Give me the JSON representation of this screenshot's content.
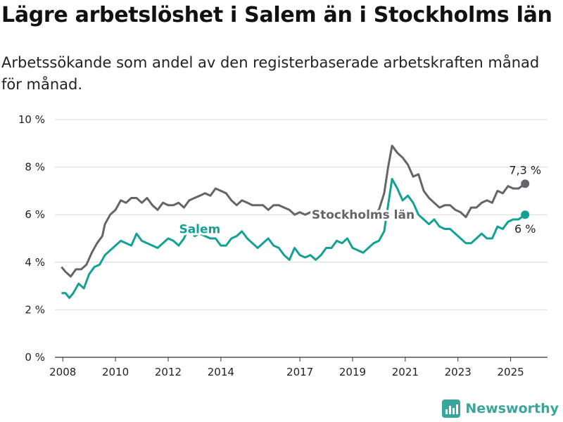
{
  "title": "Lägre arbetslöshet i Salem än i Stockholms län",
  "subtitle": "Arbetssökande som andel av den registerbaserade arbetskraften månad för månad.",
  "brand": "Newsworthy",
  "colors": {
    "stockholm": "#666369",
    "salem": "#13a095",
    "grid": "#d9d9d9",
    "axis": "#333333"
  },
  "chart_data": {
    "type": "line",
    "y_range": [
      0,
      10
    ],
    "y_ticks": [
      0,
      2,
      4,
      6,
      8,
      10
    ],
    "y_tick_labels": [
      "0 %",
      "2 %",
      "4 %",
      "6 %",
      "8 %",
      "10 %"
    ],
    "x_range": [
      2007.7,
      2026.4
    ],
    "x_ticks": [
      2008,
      2010,
      2012,
      2014,
      2017,
      2019,
      2021,
      2023,
      2025
    ],
    "x_tick_labels": [
      "2008",
      "2010",
      "2012",
      "2014",
      "2017",
      "2019",
      "2021",
      "2023",
      "2025"
    ],
    "grid": true,
    "series": [
      {
        "name": "Stockholms län",
        "end_label": "7,3 %",
        "points": [
          [
            2007.95,
            3.8
          ],
          [
            2008.1,
            3.6
          ],
          [
            2008.3,
            3.4
          ],
          [
            2008.5,
            3.7
          ],
          [
            2008.7,
            3.7
          ],
          [
            2008.9,
            3.9
          ],
          [
            2009.1,
            4.4
          ],
          [
            2009.3,
            4.8
          ],
          [
            2009.5,
            5.1
          ],
          [
            2009.6,
            5.6
          ],
          [
            2009.8,
            6.0
          ],
          [
            2010.0,
            6.2
          ],
          [
            2010.2,
            6.6
          ],
          [
            2010.4,
            6.5
          ],
          [
            2010.6,
            6.7
          ],
          [
            2010.8,
            6.7
          ],
          [
            2011.0,
            6.5
          ],
          [
            2011.2,
            6.7
          ],
          [
            2011.4,
            6.4
          ],
          [
            2011.6,
            6.2
          ],
          [
            2011.8,
            6.5
          ],
          [
            2012.0,
            6.4
          ],
          [
            2012.2,
            6.4
          ],
          [
            2012.4,
            6.5
          ],
          [
            2012.6,
            6.3
          ],
          [
            2012.8,
            6.6
          ],
          [
            2013.0,
            6.7
          ],
          [
            2013.2,
            6.8
          ],
          [
            2013.4,
            6.9
          ],
          [
            2013.6,
            6.8
          ],
          [
            2013.8,
            7.1
          ],
          [
            2014.0,
            7.0
          ],
          [
            2014.2,
            6.9
          ],
          [
            2014.4,
            6.6
          ],
          [
            2014.6,
            6.4
          ],
          [
            2014.8,
            6.6
          ],
          [
            2015.0,
            6.5
          ],
          [
            2015.2,
            6.4
          ],
          [
            2015.4,
            6.4
          ],
          [
            2015.6,
            6.4
          ],
          [
            2015.8,
            6.2
          ],
          [
            2016.0,
            6.4
          ],
          [
            2016.2,
            6.4
          ],
          [
            2016.4,
            6.3
          ],
          [
            2016.6,
            6.2
          ],
          [
            2016.8,
            6.0
          ],
          [
            2017.0,
            6.1
          ],
          [
            2017.2,
            6.0
          ],
          [
            2017.4,
            6.1
          ],
          [
            2017.6,
            6.0
          ],
          [
            2017.8,
            6.1
          ],
          [
            2018.0,
            6.0
          ],
          [
            2018.2,
            6.1
          ],
          [
            2018.4,
            6.0
          ],
          [
            2018.6,
            6.0
          ],
          [
            2018.8,
            5.9
          ],
          [
            2019.0,
            5.9
          ],
          [
            2019.2,
            6.0
          ],
          [
            2019.4,
            5.8
          ],
          [
            2019.6,
            5.9
          ],
          [
            2019.8,
            6.0
          ],
          [
            2020.0,
            6.2
          ],
          [
            2020.2,
            6.9
          ],
          [
            2020.35,
            8.0
          ],
          [
            2020.5,
            8.9
          ],
          [
            2020.7,
            8.6
          ],
          [
            2020.9,
            8.4
          ],
          [
            2021.1,
            8.1
          ],
          [
            2021.3,
            7.6
          ],
          [
            2021.5,
            7.7
          ],
          [
            2021.7,
            7.0
          ],
          [
            2021.9,
            6.7
          ],
          [
            2022.1,
            6.5
          ],
          [
            2022.3,
            6.3
          ],
          [
            2022.5,
            6.4
          ],
          [
            2022.7,
            6.4
          ],
          [
            2022.9,
            6.2
          ],
          [
            2023.1,
            6.1
          ],
          [
            2023.3,
            5.9
          ],
          [
            2023.5,
            6.3
          ],
          [
            2023.7,
            6.3
          ],
          [
            2023.9,
            6.5
          ],
          [
            2024.1,
            6.6
          ],
          [
            2024.3,
            6.5
          ],
          [
            2024.5,
            7.0
          ],
          [
            2024.7,
            6.9
          ],
          [
            2024.9,
            7.2
          ],
          [
            2025.1,
            7.1
          ],
          [
            2025.3,
            7.1
          ],
          [
            2025.55,
            7.3
          ]
        ]
      },
      {
        "name": "Salem",
        "end_label": "6 %",
        "points": [
          [
            2007.95,
            2.7
          ],
          [
            2008.1,
            2.7
          ],
          [
            2008.25,
            2.5
          ],
          [
            2008.4,
            2.7
          ],
          [
            2008.6,
            3.1
          ],
          [
            2008.8,
            2.9
          ],
          [
            2009.0,
            3.5
          ],
          [
            2009.2,
            3.8
          ],
          [
            2009.4,
            3.9
          ],
          [
            2009.6,
            4.3
          ],
          [
            2009.8,
            4.5
          ],
          [
            2010.0,
            4.7
          ],
          [
            2010.2,
            4.9
          ],
          [
            2010.4,
            4.8
          ],
          [
            2010.6,
            4.7
          ],
          [
            2010.8,
            5.2
          ],
          [
            2011.0,
            4.9
          ],
          [
            2011.2,
            4.8
          ],
          [
            2011.4,
            4.7
          ],
          [
            2011.6,
            4.6
          ],
          [
            2011.8,
            4.8
          ],
          [
            2012.0,
            5.0
          ],
          [
            2012.2,
            4.9
          ],
          [
            2012.4,
            4.7
          ],
          [
            2012.6,
            5.0
          ],
          [
            2012.8,
            5.5
          ],
          [
            2013.0,
            5.1
          ],
          [
            2013.2,
            5.2
          ],
          [
            2013.4,
            5.1
          ],
          [
            2013.6,
            5.0
          ],
          [
            2013.8,
            5.0
          ],
          [
            2014.0,
            4.7
          ],
          [
            2014.2,
            4.7
          ],
          [
            2014.4,
            5.0
          ],
          [
            2014.6,
            5.1
          ],
          [
            2014.8,
            5.3
          ],
          [
            2015.0,
            5.0
          ],
          [
            2015.2,
            4.8
          ],
          [
            2015.4,
            4.6
          ],
          [
            2015.6,
            4.8
          ],
          [
            2015.8,
            5.0
          ],
          [
            2016.0,
            4.7
          ],
          [
            2016.2,
            4.6
          ],
          [
            2016.4,
            4.3
          ],
          [
            2016.6,
            4.1
          ],
          [
            2016.8,
            4.6
          ],
          [
            2017.0,
            4.3
          ],
          [
            2017.2,
            4.2
          ],
          [
            2017.4,
            4.3
          ],
          [
            2017.6,
            4.1
          ],
          [
            2017.8,
            4.3
          ],
          [
            2018.0,
            4.6
          ],
          [
            2018.2,
            4.6
          ],
          [
            2018.4,
            4.9
          ],
          [
            2018.6,
            4.8
          ],
          [
            2018.8,
            5.0
          ],
          [
            2019.0,
            4.6
          ],
          [
            2019.2,
            4.5
          ],
          [
            2019.4,
            4.4
          ],
          [
            2019.6,
            4.6
          ],
          [
            2019.8,
            4.8
          ],
          [
            2020.0,
            4.9
          ],
          [
            2020.2,
            5.3
          ],
          [
            2020.35,
            6.4
          ],
          [
            2020.5,
            7.5
          ],
          [
            2020.7,
            7.1
          ],
          [
            2020.9,
            6.6
          ],
          [
            2021.1,
            6.8
          ],
          [
            2021.3,
            6.5
          ],
          [
            2021.5,
            6.0
          ],
          [
            2021.7,
            5.8
          ],
          [
            2021.9,
            5.6
          ],
          [
            2022.1,
            5.8
          ],
          [
            2022.3,
            5.5
          ],
          [
            2022.5,
            5.4
          ],
          [
            2022.7,
            5.4
          ],
          [
            2022.9,
            5.2
          ],
          [
            2023.1,
            5.0
          ],
          [
            2023.3,
            4.8
          ],
          [
            2023.5,
            4.8
          ],
          [
            2023.7,
            5.0
          ],
          [
            2023.9,
            5.2
          ],
          [
            2024.1,
            5.0
          ],
          [
            2024.3,
            5.0
          ],
          [
            2024.5,
            5.5
          ],
          [
            2024.7,
            5.4
          ],
          [
            2024.9,
            5.7
          ],
          [
            2025.1,
            5.8
          ],
          [
            2025.3,
            5.8
          ],
          [
            2025.55,
            6.0
          ]
        ]
      }
    ]
  }
}
